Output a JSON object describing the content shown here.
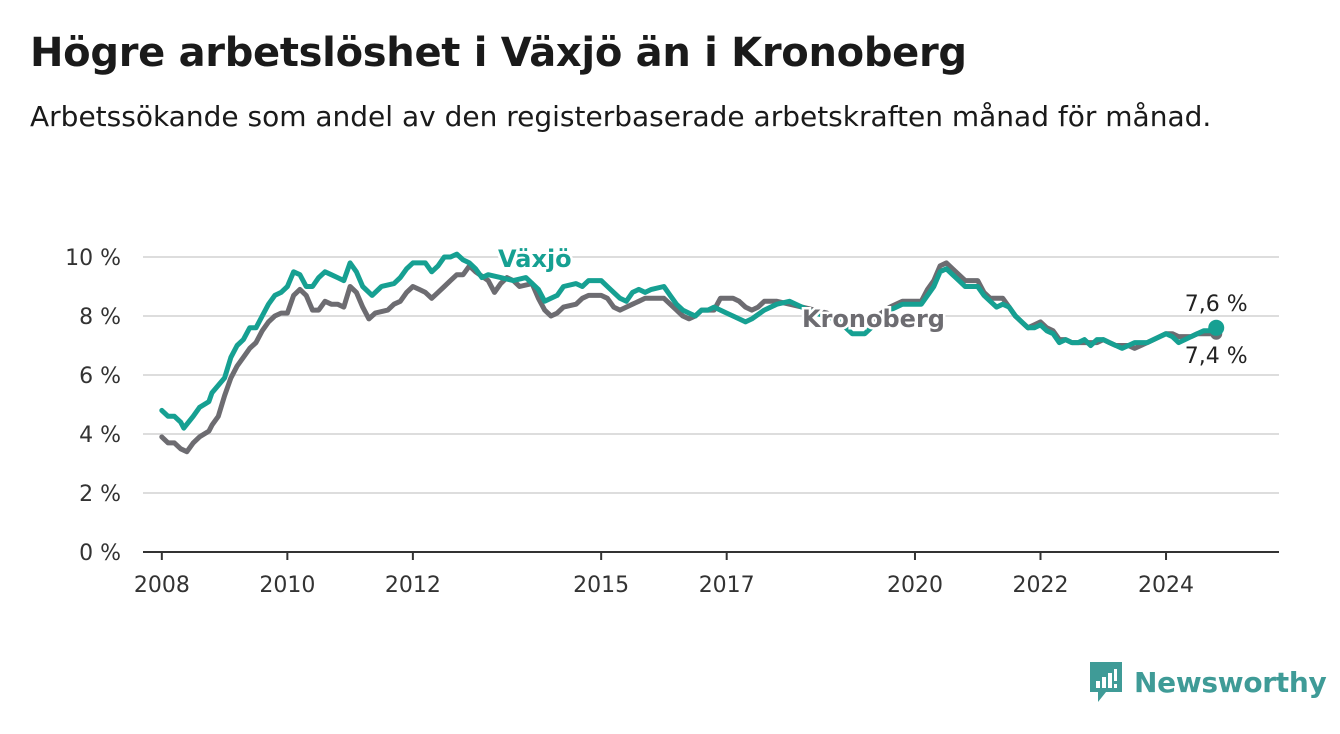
{
  "header": {
    "title": "Högre arbetslöshet i Växjö än i Kronoberg",
    "subtitle": "Arbetssökande som andel av den registerbaserade arbetskraften månad för månad."
  },
  "brand": {
    "name": "Newsworthy",
    "color": "#3f9b97"
  },
  "colors": {
    "vaxjo": "#16a092",
    "kronoberg": "#6d6c71",
    "grid": "#dddddd",
    "axis": "#333333"
  },
  "chart_data": {
    "type": "line",
    "title": "Högre arbetslöshet i Växjö än i Kronoberg",
    "x_unit": "year (decimal, monthly data)",
    "y_unit": "%",
    "ylim": [
      0,
      10
    ],
    "xlim": [
      2007.7,
      2025.8
    ],
    "y_ticks": [
      0,
      2,
      4,
      6,
      8,
      10
    ],
    "y_tick_labels": [
      "0 %",
      "2 %",
      "4 %",
      "6 %",
      "8 %",
      "10 %"
    ],
    "x_ticks": [
      2008,
      2010,
      2012,
      2015,
      2017,
      2020,
      2022,
      2024
    ],
    "x_tick_labels": [
      "2008",
      "2010",
      "2012",
      "2015",
      "2017",
      "2020",
      "2022",
      "2024"
    ],
    "grid": "horizontal",
    "series": [
      {
        "name": "Växjö",
        "color_key": "vaxjo",
        "end_label": "7,6 %",
        "points": [
          [
            2008.0,
            4.8
          ],
          [
            2008.1,
            4.6
          ],
          [
            2008.2,
            4.6
          ],
          [
            2008.3,
            4.4
          ],
          [
            2008.35,
            4.2
          ],
          [
            2008.5,
            4.6
          ],
          [
            2008.6,
            4.9
          ],
          [
            2008.75,
            5.1
          ],
          [
            2008.8,
            5.4
          ],
          [
            2009.0,
            5.9
          ],
          [
            2009.1,
            6.6
          ],
          [
            2009.2,
            7.0
          ],
          [
            2009.3,
            7.2
          ],
          [
            2009.4,
            7.6
          ],
          [
            2009.5,
            7.6
          ],
          [
            2009.6,
            8.0
          ],
          [
            2009.7,
            8.4
          ],
          [
            2009.8,
            8.7
          ],
          [
            2009.9,
            8.8
          ],
          [
            2010.0,
            9.0
          ],
          [
            2010.1,
            9.5
          ],
          [
            2010.2,
            9.4
          ],
          [
            2010.3,
            9.0
          ],
          [
            2010.4,
            9.0
          ],
          [
            2010.5,
            9.3
          ],
          [
            2010.6,
            9.5
          ],
          [
            2010.7,
            9.4
          ],
          [
            2010.8,
            9.3
          ],
          [
            2010.9,
            9.2
          ],
          [
            2011.0,
            9.8
          ],
          [
            2011.1,
            9.5
          ],
          [
            2011.2,
            9.0
          ],
          [
            2011.35,
            8.7
          ],
          [
            2011.5,
            9.0
          ],
          [
            2011.7,
            9.1
          ],
          [
            2011.8,
            9.3
          ],
          [
            2011.9,
            9.6
          ],
          [
            2012.0,
            9.8
          ],
          [
            2012.1,
            9.8
          ],
          [
            2012.2,
            9.8
          ],
          [
            2012.3,
            9.5
          ],
          [
            2012.4,
            9.7
          ],
          [
            2012.5,
            10.0
          ],
          [
            2012.6,
            10.0
          ],
          [
            2012.7,
            10.1
          ],
          [
            2012.8,
            9.9
          ],
          [
            2012.9,
            9.8
          ],
          [
            2013.0,
            9.6
          ],
          [
            2013.1,
            9.3
          ],
          [
            2013.2,
            9.4
          ],
          [
            2013.4,
            9.3
          ],
          [
            2013.6,
            9.2
          ],
          [
            2013.8,
            9.3
          ],
          [
            2014.0,
            8.9
          ],
          [
            2014.1,
            8.5
          ],
          [
            2014.2,
            8.6
          ],
          [
            2014.3,
            8.7
          ],
          [
            2014.4,
            9.0
          ],
          [
            2014.6,
            9.1
          ],
          [
            2014.7,
            9.0
          ],
          [
            2014.8,
            9.2
          ],
          [
            2015.0,
            9.2
          ],
          [
            2015.1,
            9.0
          ],
          [
            2015.2,
            8.8
          ],
          [
            2015.3,
            8.6
          ],
          [
            2015.4,
            8.5
          ],
          [
            2015.5,
            8.8
          ],
          [
            2015.6,
            8.9
          ],
          [
            2015.7,
            8.8
          ],
          [
            2015.8,
            8.9
          ],
          [
            2016.0,
            9.0
          ],
          [
            2016.1,
            8.7
          ],
          [
            2016.2,
            8.4
          ],
          [
            2016.3,
            8.2
          ],
          [
            2016.4,
            8.1
          ],
          [
            2016.5,
            8.0
          ],
          [
            2016.6,
            8.2
          ],
          [
            2016.7,
            8.2
          ],
          [
            2016.8,
            8.3
          ],
          [
            2016.9,
            8.2
          ],
          [
            2017.0,
            8.1
          ],
          [
            2017.1,
            8.0
          ],
          [
            2017.3,
            7.8
          ],
          [
            2017.4,
            7.9
          ],
          [
            2017.6,
            8.2
          ],
          [
            2017.8,
            8.4
          ],
          [
            2018.0,
            8.5
          ],
          [
            2018.2,
            8.3
          ],
          [
            2018.4,
            8.1
          ],
          [
            2018.6,
            8.0
          ],
          [
            2018.8,
            7.8
          ],
          [
            2018.9,
            7.6
          ],
          [
            2019.0,
            7.4
          ],
          [
            2019.2,
            7.4
          ],
          [
            2019.4,
            7.8
          ],
          [
            2019.6,
            8.2
          ],
          [
            2019.8,
            8.4
          ],
          [
            2020.0,
            8.4
          ],
          [
            2020.1,
            8.4
          ],
          [
            2020.2,
            8.7
          ],
          [
            2020.3,
            9.0
          ],
          [
            2020.4,
            9.5
          ],
          [
            2020.5,
            9.6
          ],
          [
            2020.6,
            9.4
          ],
          [
            2020.7,
            9.2
          ],
          [
            2020.8,
            9.0
          ],
          [
            2020.9,
            9.0
          ],
          [
            2021.0,
            9.0
          ],
          [
            2021.1,
            8.7
          ],
          [
            2021.2,
            8.5
          ],
          [
            2021.3,
            8.3
          ],
          [
            2021.4,
            8.4
          ],
          [
            2021.5,
            8.3
          ],
          [
            2021.6,
            8.0
          ],
          [
            2021.7,
            7.8
          ],
          [
            2021.8,
            7.6
          ],
          [
            2021.9,
            7.6
          ],
          [
            2022.0,
            7.7
          ],
          [
            2022.1,
            7.5
          ],
          [
            2022.2,
            7.4
          ],
          [
            2022.3,
            7.1
          ],
          [
            2022.4,
            7.2
          ],
          [
            2022.5,
            7.1
          ],
          [
            2022.6,
            7.1
          ],
          [
            2022.7,
            7.2
          ],
          [
            2022.8,
            7.0
          ],
          [
            2022.9,
            7.2
          ],
          [
            2023.0,
            7.2
          ],
          [
            2023.1,
            7.1
          ],
          [
            2023.2,
            7.0
          ],
          [
            2023.3,
            6.9
          ],
          [
            2023.4,
            7.0
          ],
          [
            2023.5,
            7.1
          ],
          [
            2023.6,
            7.1
          ],
          [
            2023.7,
            7.1
          ],
          [
            2023.8,
            7.2
          ],
          [
            2023.9,
            7.3
          ],
          [
            2024.0,
            7.4
          ],
          [
            2024.1,
            7.3
          ],
          [
            2024.2,
            7.1
          ],
          [
            2024.3,
            7.2
          ],
          [
            2024.4,
            7.3
          ],
          [
            2024.5,
            7.4
          ],
          [
            2024.6,
            7.5
          ],
          [
            2024.7,
            7.5
          ],
          [
            2024.8,
            7.6
          ]
        ]
      },
      {
        "name": "Kronoberg",
        "color_key": "kronoberg",
        "end_label": "7,4 %",
        "points": [
          [
            2008.0,
            3.9
          ],
          [
            2008.1,
            3.7
          ],
          [
            2008.2,
            3.7
          ],
          [
            2008.3,
            3.5
          ],
          [
            2008.4,
            3.4
          ],
          [
            2008.5,
            3.7
          ],
          [
            2008.6,
            3.9
          ],
          [
            2008.75,
            4.1
          ],
          [
            2008.8,
            4.3
          ],
          [
            2008.9,
            4.6
          ],
          [
            2009.0,
            5.3
          ],
          [
            2009.1,
            5.9
          ],
          [
            2009.2,
            6.3
          ],
          [
            2009.3,
            6.6
          ],
          [
            2009.4,
            6.9
          ],
          [
            2009.5,
            7.1
          ],
          [
            2009.6,
            7.5
          ],
          [
            2009.7,
            7.8
          ],
          [
            2009.8,
            8.0
          ],
          [
            2009.9,
            8.1
          ],
          [
            2010.0,
            8.1
          ],
          [
            2010.1,
            8.7
          ],
          [
            2010.2,
            8.9
          ],
          [
            2010.3,
            8.7
          ],
          [
            2010.4,
            8.2
          ],
          [
            2010.5,
            8.2
          ],
          [
            2010.6,
            8.5
          ],
          [
            2010.7,
            8.4
          ],
          [
            2010.8,
            8.4
          ],
          [
            2010.9,
            8.3
          ],
          [
            2011.0,
            9.0
          ],
          [
            2011.1,
            8.8
          ],
          [
            2011.2,
            8.3
          ],
          [
            2011.3,
            7.9
          ],
          [
            2011.4,
            8.1
          ],
          [
            2011.6,
            8.2
          ],
          [
            2011.7,
            8.4
          ],
          [
            2011.8,
            8.5
          ],
          [
            2011.9,
            8.8
          ],
          [
            2012.0,
            9.0
          ],
          [
            2012.1,
            8.9
          ],
          [
            2012.2,
            8.8
          ],
          [
            2012.3,
            8.6
          ],
          [
            2012.4,
            8.8
          ],
          [
            2012.5,
            9.0
          ],
          [
            2012.6,
            9.2
          ],
          [
            2012.7,
            9.4
          ],
          [
            2012.8,
            9.4
          ],
          [
            2012.9,
            9.7
          ],
          [
            2013.0,
            9.5
          ],
          [
            2013.2,
            9.2
          ],
          [
            2013.3,
            8.8
          ],
          [
            2013.4,
            9.1
          ],
          [
            2013.5,
            9.3
          ],
          [
            2013.6,
            9.2
          ],
          [
            2013.7,
            9.0
          ],
          [
            2013.9,
            9.1
          ],
          [
            2014.0,
            8.6
          ],
          [
            2014.1,
            8.2
          ],
          [
            2014.2,
            8.0
          ],
          [
            2014.3,
            8.1
          ],
          [
            2014.4,
            8.3
          ],
          [
            2014.6,
            8.4
          ],
          [
            2014.7,
            8.6
          ],
          [
            2014.8,
            8.7
          ],
          [
            2015.0,
            8.7
          ],
          [
            2015.1,
            8.6
          ],
          [
            2015.2,
            8.3
          ],
          [
            2015.3,
            8.2
          ],
          [
            2015.4,
            8.3
          ],
          [
            2015.5,
            8.4
          ],
          [
            2015.6,
            8.5
          ],
          [
            2015.7,
            8.6
          ],
          [
            2015.8,
            8.6
          ],
          [
            2016.0,
            8.6
          ],
          [
            2016.1,
            8.4
          ],
          [
            2016.2,
            8.2
          ],
          [
            2016.3,
            8.0
          ],
          [
            2016.4,
            7.9
          ],
          [
            2016.5,
            8.0
          ],
          [
            2016.6,
            8.2
          ],
          [
            2016.7,
            8.2
          ],
          [
            2016.8,
            8.2
          ],
          [
            2016.9,
            8.6
          ],
          [
            2017.0,
            8.6
          ],
          [
            2017.1,
            8.6
          ],
          [
            2017.2,
            8.5
          ],
          [
            2017.3,
            8.3
          ],
          [
            2017.4,
            8.2
          ],
          [
            2017.5,
            8.3
          ],
          [
            2017.6,
            8.5
          ],
          [
            2017.8,
            8.5
          ],
          [
            2018.0,
            8.4
          ],
          [
            2018.2,
            8.3
          ],
          [
            2018.4,
            8.2
          ],
          [
            2018.6,
            8.1
          ],
          [
            2018.8,
            7.9
          ],
          [
            2019.0,
            7.7
          ],
          [
            2019.2,
            7.7
          ],
          [
            2019.4,
            8.0
          ],
          [
            2019.6,
            8.3
          ],
          [
            2019.8,
            8.5
          ],
          [
            2020.0,
            8.5
          ],
          [
            2020.1,
            8.5
          ],
          [
            2020.2,
            8.9
          ],
          [
            2020.3,
            9.2
          ],
          [
            2020.4,
            9.7
          ],
          [
            2020.5,
            9.8
          ],
          [
            2020.6,
            9.6
          ],
          [
            2020.7,
            9.4
          ],
          [
            2020.8,
            9.2
          ],
          [
            2020.9,
            9.2
          ],
          [
            2021.0,
            9.2
          ],
          [
            2021.1,
            8.8
          ],
          [
            2021.2,
            8.6
          ],
          [
            2021.3,
            8.6
          ],
          [
            2021.4,
            8.6
          ],
          [
            2021.5,
            8.3
          ],
          [
            2021.6,
            8.0
          ],
          [
            2021.7,
            7.8
          ],
          [
            2021.8,
            7.6
          ],
          [
            2021.9,
            7.7
          ],
          [
            2022.0,
            7.8
          ],
          [
            2022.1,
            7.6
          ],
          [
            2022.2,
            7.5
          ],
          [
            2022.3,
            7.2
          ],
          [
            2022.4,
            7.2
          ],
          [
            2022.5,
            7.1
          ],
          [
            2022.6,
            7.1
          ],
          [
            2022.7,
            7.1
          ],
          [
            2022.8,
            7.1
          ],
          [
            2022.9,
            7.1
          ],
          [
            2023.0,
            7.2
          ],
          [
            2023.1,
            7.1
          ],
          [
            2023.2,
            7.0
          ],
          [
            2023.3,
            7.0
          ],
          [
            2023.4,
            7.0
          ],
          [
            2023.5,
            6.9
          ],
          [
            2023.6,
            7.0
          ],
          [
            2023.7,
            7.1
          ],
          [
            2023.8,
            7.2
          ],
          [
            2023.9,
            7.3
          ],
          [
            2024.0,
            7.4
          ],
          [
            2024.1,
            7.4
          ],
          [
            2024.2,
            7.3
          ],
          [
            2024.3,
            7.3
          ],
          [
            2024.4,
            7.3
          ],
          [
            2024.5,
            7.4
          ],
          [
            2024.6,
            7.4
          ],
          [
            2024.7,
            7.4
          ],
          [
            2024.8,
            7.4
          ]
        ]
      }
    ]
  }
}
